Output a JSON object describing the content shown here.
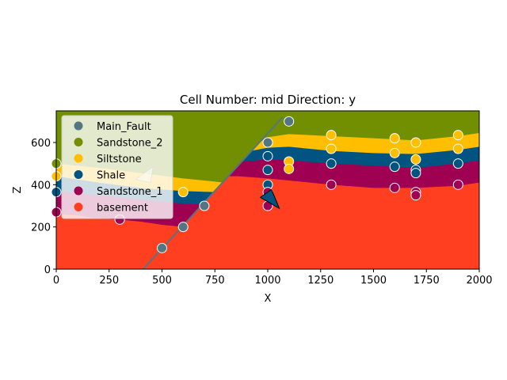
{
  "chart_data": {
    "type": "scatter",
    "title": "Cell Number: mid Direction: y",
    "xlabel": "X",
    "ylabel": "Z",
    "xlim": [
      0,
      2000
    ],
    "ylim": [
      0,
      750
    ],
    "xticks": [
      "0",
      "250",
      "500",
      "750",
      "1000",
      "1250",
      "1500",
      "1750",
      "2000"
    ],
    "xtick_values": [
      0,
      250,
      500,
      750,
      1000,
      1250,
      1500,
      1750,
      2000
    ],
    "yticks": [
      "0",
      "200",
      "400",
      "600"
    ],
    "ytick_values": [
      0,
      200,
      400,
      600
    ],
    "legend_position": "upper-left",
    "legend": [
      {
        "name": "Main_Fault",
        "color": "#527682"
      },
      {
        "name": "Sandstone_2",
        "color": "#728f02"
      },
      {
        "name": "Siltstone",
        "color": "#ffbe00"
      },
      {
        "name": "Shale",
        "color": "#015482"
      },
      {
        "name": "Sandstone_1",
        "color": "#9f0052"
      },
      {
        "name": "basement",
        "color": "#ff3f20"
      }
    ],
    "fault_line": {
      "x": [
        410,
        1070
      ],
      "y": [
        0,
        720
      ]
    },
    "layer_boundaries": {
      "Siltstone_top": {
        "left": {
          "x": [
            0,
            200,
            400,
            600,
            750,
            790
          ],
          "y": [
            500,
            480,
            455,
            430,
            415,
            410
          ]
        },
        "right": {
          "x": [
            960,
            1000,
            1100,
            1300,
            1500,
            1700,
            1900,
            2000
          ],
          "y": [
            600,
            625,
            640,
            630,
            620,
            610,
            630,
            645
          ]
        }
      },
      "Shale_top": {
        "left": {
          "x": [
            0,
            200,
            400,
            600,
            750
          ],
          "y": [
            440,
            410,
            385,
            370,
            365
          ]
        },
        "right": {
          "x": [
            920,
            1000,
            1100,
            1300,
            1500,
            1700,
            1900,
            2000
          ],
          "y": [
            560,
            575,
            580,
            560,
            550,
            545,
            565,
            580
          ]
        }
      },
      "Sandstone_1_top": {
        "left": {
          "x": [
            0,
            200,
            400,
            600,
            720
          ],
          "y": [
            370,
            350,
            330,
            310,
            305
          ]
        },
        "right": {
          "x": [
            890,
            1000,
            1100,
            1300,
            1500,
            1700,
            1900,
            2000
          ],
          "y": [
            510,
            520,
            515,
            500,
            490,
            480,
            500,
            515
          ]
        }
      },
      "basement_top": {
        "left": {
          "x": [
            0,
            100,
            200,
            300,
            400,
            500,
            600,
            700
          ],
          "y": [
            260,
            255,
            240,
            235,
            225,
            210,
            200,
            200
          ]
        },
        "right": {
          "x": [
            860,
            1000,
            1100,
            1300,
            1500,
            1700,
            1900,
            2000
          ],
          "y": [
            440,
            430,
            420,
            400,
            385,
            385,
            395,
            410
          ]
        }
      }
    },
    "series": [
      {
        "name": "Main_Fault",
        "color": "#527682",
        "x": [
          500,
          600,
          700,
          1000,
          1100
        ],
        "y": [
          100,
          200,
          300,
          600,
          700
        ]
      },
      {
        "name": "Sandstone_2",
        "color": "#728f02",
        "x": [],
        "y": []
      },
      {
        "name": "Siltstone",
        "color": "#ffbe00",
        "x": [
          0,
          600,
          1100,
          1100,
          1300,
          1300,
          1600,
          1600,
          1700,
          1700,
          1900,
          1900
        ],
        "y": [
          440,
          365,
          510,
          475,
          635,
          570,
          620,
          550,
          600,
          520,
          635,
          570
        ]
      },
      {
        "name": "Shale",
        "color": "#015482",
        "x": [
          0,
          1000,
          1000,
          1000,
          1300,
          1600,
          1700,
          1700,
          1900
        ],
        "y": [
          365,
          535,
          470,
          400,
          500,
          485,
          470,
          455,
          500
        ]
      },
      {
        "name": "Sandstone_1",
        "color": "#9f0052",
        "x": [
          0,
          300,
          1000,
          1000,
          1300,
          1600,
          1700,
          1700,
          1900
        ],
        "y": [
          270,
          235,
          365,
          300,
          400,
          385,
          365,
          350,
          400
        ]
      },
      {
        "name": "basement",
        "color": "#ff3f20",
        "x": [],
        "y": []
      }
    ],
    "extra_points": {
      "name": "Sandstone_2",
      "color": "#728f02",
      "x": [
        0
      ],
      "y": [
        500
      ]
    },
    "orientation_arrows": [
      {
        "x": 420,
        "y": 440,
        "color": "#dfe6cf"
      },
      {
        "x": 1010,
        "y": 310,
        "color": "#015482"
      }
    ]
  }
}
